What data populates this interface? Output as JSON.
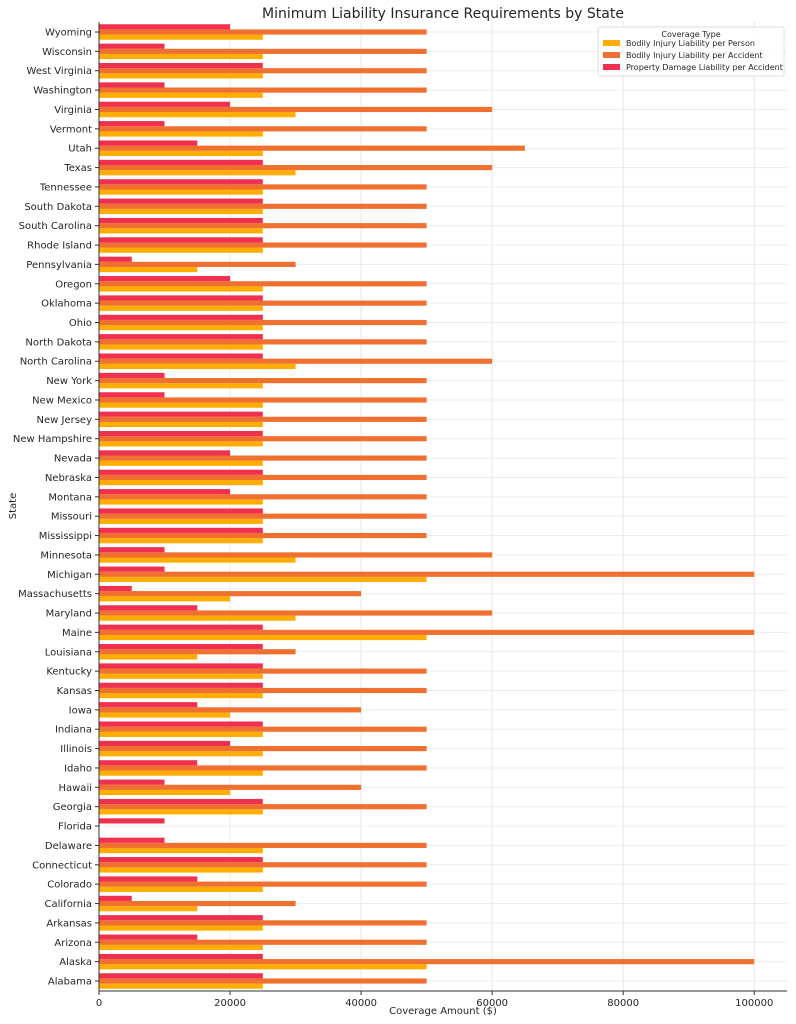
{
  "chart_data": {
    "type": "bar",
    "orientation": "horizontal",
    "title": "Minimum Liability Insurance Requirements by State",
    "xlabel": "Coverage Amount ($)",
    "ylabel": "State",
    "xlim": [
      0,
      105000
    ],
    "xticks": [
      0,
      20000,
      40000,
      60000,
      80000,
      100000
    ],
    "grid": true,
    "legend": {
      "title": "Coverage Type",
      "placement": "top-right"
    },
    "categories": [
      "Alabama",
      "Alaska",
      "Arizona",
      "Arkansas",
      "California",
      "Colorado",
      "Connecticut",
      "Delaware",
      "Florida",
      "Georgia",
      "Hawaii",
      "Idaho",
      "Illinois",
      "Indiana",
      "Iowa",
      "Kansas",
      "Kentucky",
      "Louisiana",
      "Maine",
      "Maryland",
      "Massachusetts",
      "Michigan",
      "Minnesota",
      "Mississippi",
      "Missouri",
      "Montana",
      "Nebraska",
      "Nevada",
      "New Hampshire",
      "New Jersey",
      "New Mexico",
      "New York",
      "North Carolina",
      "North Dakota",
      "Ohio",
      "Oklahoma",
      "Oregon",
      "Pennsylvania",
      "Rhode Island",
      "South Carolina",
      "South Dakota",
      "Tennessee",
      "Texas",
      "Utah",
      "Vermont",
      "Virginia",
      "Washington",
      "West Virginia",
      "Wisconsin",
      "Wyoming"
    ],
    "series": [
      {
        "name": "Bodily Injury Liability per Person",
        "color": "#FFAD00",
        "values": [
          25000,
          50000,
          25000,
          25000,
          15000,
          25000,
          25000,
          25000,
          0,
          25000,
          20000,
          25000,
          25000,
          25000,
          20000,
          25000,
          25000,
          15000,
          50000,
          30000,
          20000,
          50000,
          30000,
          25000,
          25000,
          25000,
          25000,
          25000,
          25000,
          25000,
          25000,
          25000,
          30000,
          25000,
          25000,
          25000,
          25000,
          15000,
          25000,
          25000,
          25000,
          25000,
          30000,
          25000,
          25000,
          30000,
          25000,
          25000,
          25000,
          25000
        ]
      },
      {
        "name": "Bodily Injury Liability per Accident",
        "color": "#F07030",
        "values": [
          50000,
          100000,
          50000,
          50000,
          30000,
          50000,
          50000,
          50000,
          0,
          50000,
          40000,
          50000,
          50000,
          50000,
          40000,
          50000,
          50000,
          30000,
          100000,
          60000,
          40000,
          100000,
          60000,
          50000,
          50000,
          50000,
          50000,
          50000,
          50000,
          50000,
          50000,
          50000,
          60000,
          50000,
          50000,
          50000,
          50000,
          30000,
          50000,
          50000,
          50000,
          50000,
          60000,
          65000,
          50000,
          60000,
          50000,
          50000,
          50000,
          50000
        ]
      },
      {
        "name": "Property Damage Liability per Accident",
        "color": "#F0304F",
        "values": [
          25000,
          25000,
          15000,
          25000,
          5000,
          15000,
          25000,
          10000,
          10000,
          25000,
          10000,
          15000,
          20000,
          25000,
          15000,
          25000,
          25000,
          25000,
          25000,
          15000,
          5000,
          10000,
          10000,
          25000,
          25000,
          20000,
          25000,
          20000,
          25000,
          25000,
          10000,
          10000,
          25000,
          25000,
          25000,
          25000,
          20000,
          5000,
          25000,
          25000,
          25000,
          25000,
          25000,
          15000,
          10000,
          20000,
          10000,
          25000,
          10000,
          20000
        ]
      }
    ]
  }
}
